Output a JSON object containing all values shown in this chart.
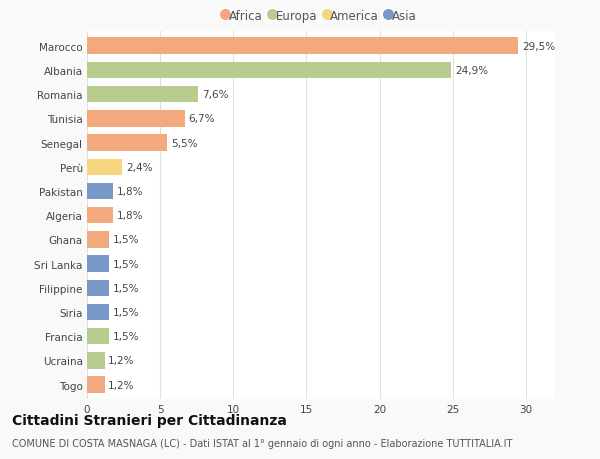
{
  "countries": [
    "Marocco",
    "Albania",
    "Romania",
    "Tunisia",
    "Senegal",
    "Perù",
    "Pakistan",
    "Algeria",
    "Ghana",
    "Sri Lanka",
    "Filippine",
    "Siria",
    "Francia",
    "Ucraina",
    "Togo"
  ],
  "values": [
    29.5,
    24.9,
    7.6,
    6.7,
    5.5,
    2.4,
    1.8,
    1.8,
    1.5,
    1.5,
    1.5,
    1.5,
    1.5,
    1.2,
    1.2
  ],
  "labels": [
    "29,5%",
    "24,9%",
    "7,6%",
    "6,7%",
    "5,5%",
    "2,4%",
    "1,8%",
    "1,8%",
    "1,5%",
    "1,5%",
    "1,5%",
    "1,5%",
    "1,5%",
    "1,2%",
    "1,2%"
  ],
  "continents": [
    "Africa",
    "Europa",
    "Europa",
    "Africa",
    "Africa",
    "America",
    "Asia",
    "Africa",
    "Africa",
    "Asia",
    "Asia",
    "Asia",
    "Europa",
    "Europa",
    "Africa"
  ],
  "continent_colors": {
    "Africa": "#F2A97E",
    "Europa": "#B8CC90",
    "America": "#F5D580",
    "Asia": "#7898C8"
  },
  "legend_order": [
    "Africa",
    "Europa",
    "America",
    "Asia"
  ],
  "title": "Cittadini Stranieri per Cittadinanza",
  "subtitle": "COMUNE DI COSTA MASNAGA (LC) - Dati ISTAT al 1° gennaio di ogni anno - Elaborazione TUTTITALIA.IT",
  "xlim": [
    0,
    32
  ],
  "xticks": [
    0,
    5,
    10,
    15,
    20,
    25,
    30
  ],
  "background_color": "#f9f9f9",
  "plot_bg_color": "#ffffff",
  "grid_color": "#e0e0e0",
  "title_fontsize": 10,
  "subtitle_fontsize": 7,
  "label_fontsize": 7.5,
  "tick_fontsize": 7.5,
  "legend_fontsize": 8.5,
  "bar_height": 0.68
}
